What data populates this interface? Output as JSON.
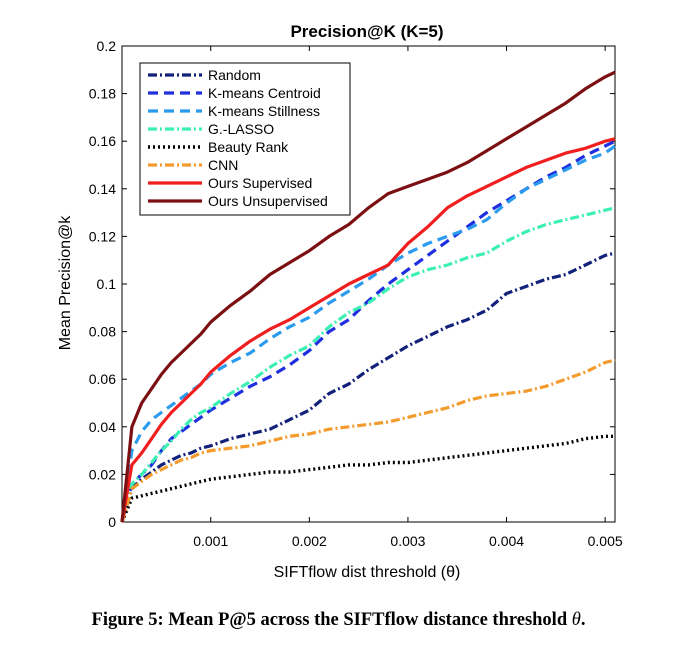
{
  "chart_data": {
    "type": "line",
    "title": "Precision@K (K=5)",
    "xlabel": "SIFTflow dist threshold (θ)",
    "ylabel": "Mean Precision@k",
    "xlim": [
      0.0001,
      0.0051
    ],
    "ylim": [
      0,
      0.2
    ],
    "xticks": [
      0.001,
      0.002,
      0.003,
      0.004,
      0.005
    ],
    "xtick_labels": [
      "0.001",
      "0.002",
      "0.003",
      "0.004",
      "0.005"
    ],
    "yticks": [
      0,
      0.02,
      0.04,
      0.06,
      0.08,
      0.1,
      0.12,
      0.14,
      0.16,
      0.18,
      0.2
    ],
    "ytick_labels": [
      "0",
      "0.02",
      "0.04",
      "0.06",
      "0.08",
      "0.1",
      "0.12",
      "0.14",
      "0.16",
      "0.18",
      "0.2"
    ],
    "grid": false,
    "legend_position": "top-left",
    "x": [
      0.0001,
      0.0002,
      0.0003,
      0.0004,
      0.0005,
      0.0006,
      0.0007,
      0.0008,
      0.0009,
      0.001,
      0.0012,
      0.0014,
      0.0016,
      0.0018,
      0.002,
      0.0022,
      0.0024,
      0.0026,
      0.0028,
      0.003,
      0.0032,
      0.0034,
      0.0036,
      0.0038,
      0.004,
      0.0042,
      0.0044,
      0.0046,
      0.0048,
      0.005,
      0.0051
    ],
    "series": [
      {
        "name": "Random",
        "color": "#12217a",
        "dash": "9 3 2 3",
        "width": 3.2,
        "values": [
          0.0,
          0.014,
          0.018,
          0.021,
          0.024,
          0.026,
          0.028,
          0.029,
          0.031,
          0.032,
          0.035,
          0.037,
          0.039,
          0.043,
          0.047,
          0.054,
          0.058,
          0.064,
          0.069,
          0.074,
          0.078,
          0.082,
          0.085,
          0.089,
          0.096,
          0.099,
          0.102,
          0.104,
          0.108,
          0.112,
          0.113
        ]
      },
      {
        "name": "K-means Centroid",
        "color": "#1f2fe0",
        "dash": "10 6",
        "width": 3.2,
        "values": [
          0.0,
          0.016,
          0.02,
          0.024,
          0.03,
          0.035,
          0.038,
          0.041,
          0.044,
          0.047,
          0.052,
          0.057,
          0.061,
          0.066,
          0.072,
          0.08,
          0.085,
          0.093,
          0.1,
          0.106,
          0.112,
          0.118,
          0.124,
          0.13,
          0.135,
          0.14,
          0.145,
          0.149,
          0.154,
          0.158,
          0.16
        ]
      },
      {
        "name": "K-means Stillness",
        "color": "#2a9bef",
        "dash": "10 6",
        "width": 3.2,
        "values": [
          0.0,
          0.03,
          0.038,
          0.043,
          0.046,
          0.049,
          0.052,
          0.055,
          0.058,
          0.062,
          0.067,
          0.071,
          0.077,
          0.082,
          0.086,
          0.092,
          0.097,
          0.102,
          0.108,
          0.113,
          0.117,
          0.12,
          0.123,
          0.127,
          0.134,
          0.14,
          0.144,
          0.148,
          0.152,
          0.155,
          0.158
        ]
      },
      {
        "name": "G.-LASSO",
        "color": "#3cf0b4",
        "dash": "9 3 2 3",
        "width": 3.2,
        "values": [
          0.0,
          0.016,
          0.02,
          0.025,
          0.03,
          0.034,
          0.039,
          0.043,
          0.046,
          0.048,
          0.054,
          0.059,
          0.065,
          0.07,
          0.074,
          0.082,
          0.088,
          0.092,
          0.098,
          0.103,
          0.106,
          0.108,
          0.111,
          0.113,
          0.118,
          0.122,
          0.125,
          0.127,
          0.129,
          0.131,
          0.132
        ]
      },
      {
        "name": "Beauty Rank",
        "color": "#000000",
        "dash": "2 3",
        "width": 3.4,
        "values": [
          0.0,
          0.01,
          0.011,
          0.012,
          0.013,
          0.014,
          0.015,
          0.016,
          0.017,
          0.018,
          0.019,
          0.02,
          0.021,
          0.021,
          0.022,
          0.023,
          0.024,
          0.024,
          0.025,
          0.025,
          0.026,
          0.027,
          0.028,
          0.029,
          0.03,
          0.031,
          0.032,
          0.033,
          0.035,
          0.036,
          0.036
        ]
      },
      {
        "name": "CNN",
        "color": "#f39b2c",
        "dash": "9 3 2 3",
        "width": 3.2,
        "values": [
          0.0,
          0.014,
          0.017,
          0.02,
          0.022,
          0.024,
          0.026,
          0.027,
          0.029,
          0.03,
          0.031,
          0.032,
          0.034,
          0.036,
          0.037,
          0.039,
          0.04,
          0.041,
          0.042,
          0.044,
          0.046,
          0.048,
          0.051,
          0.053,
          0.054,
          0.055,
          0.057,
          0.06,
          0.063,
          0.067,
          0.068
        ]
      },
      {
        "name": "Ours Supervised",
        "color": "#f01e1e",
        "dash": "",
        "width": 3.2,
        "values": [
          0.0,
          0.024,
          0.029,
          0.035,
          0.041,
          0.046,
          0.05,
          0.054,
          0.058,
          0.063,
          0.07,
          0.076,
          0.081,
          0.085,
          0.09,
          0.095,
          0.1,
          0.104,
          0.108,
          0.117,
          0.124,
          0.132,
          0.137,
          0.141,
          0.145,
          0.149,
          0.152,
          0.155,
          0.157,
          0.16,
          0.161
        ]
      },
      {
        "name": "Ours Unsupervised",
        "color": "#7b0f12",
        "dash": "",
        "width": 3.2,
        "values": [
          0.0,
          0.04,
          0.05,
          0.056,
          0.062,
          0.067,
          0.071,
          0.075,
          0.079,
          0.084,
          0.091,
          0.097,
          0.104,
          0.109,
          0.114,
          0.12,
          0.125,
          0.132,
          0.138,
          0.141,
          0.144,
          0.147,
          0.151,
          0.156,
          0.161,
          0.166,
          0.171,
          0.176,
          0.182,
          0.187,
          0.189
        ]
      }
    ]
  },
  "caption": {
    "label": "Figure 5:",
    "text": "Mean P@5 across the SIFTflow distance threshold",
    "symbol": "θ",
    "end": "."
  }
}
